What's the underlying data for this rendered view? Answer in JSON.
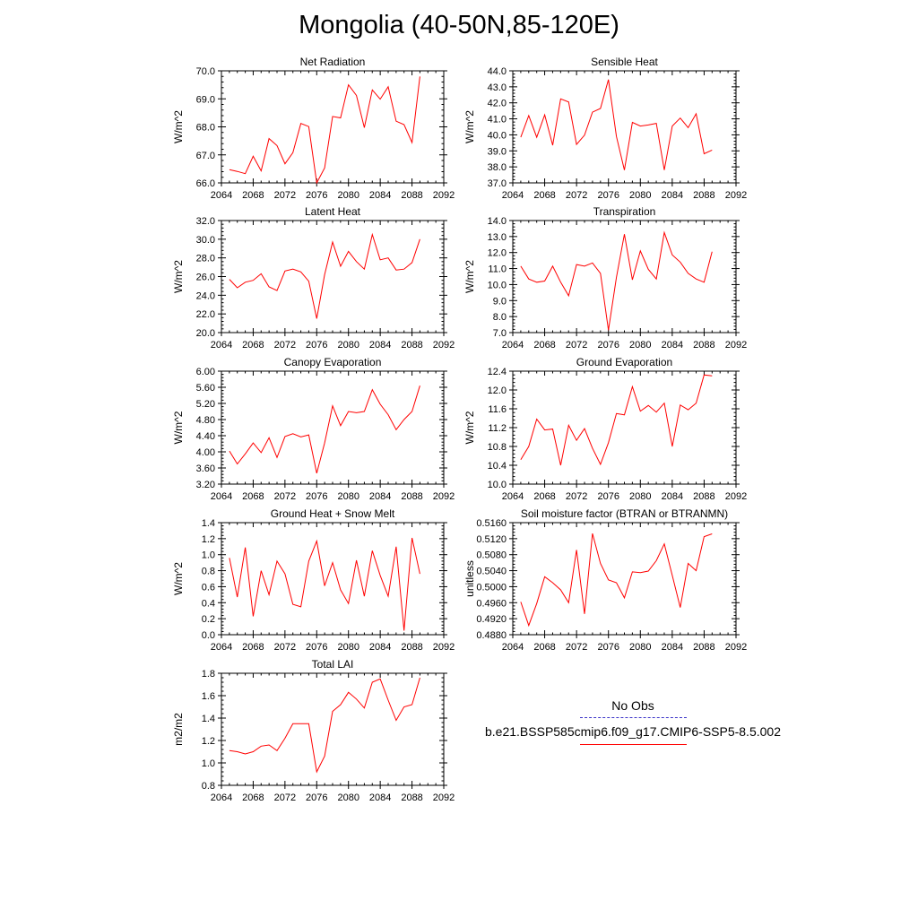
{
  "title": "Mongolia (40-50N,85-120E)",
  "colors": {
    "model_line": "#ff0000",
    "obs_line": "#3a32c8",
    "axis": "#000000"
  },
  "legend": {
    "obs_label": "No Obs",
    "model_label": "b.e21.BSSP585cmip6.f09_g17.CMIP6-SSP5-8.5.002"
  },
  "chart_data": [
    {
      "type": "line",
      "title": "Net Radiation",
      "ylabel": "W/m^2",
      "xlim": [
        2064,
        2092
      ],
      "ylim": [
        66.0,
        70.0
      ],
      "xticks": [
        "2064",
        "2068",
        "2072",
        "2076",
        "2080",
        "2084",
        "2088",
        "2092"
      ],
      "yticks": [
        "66.0",
        "67.0",
        "68.0",
        "69.0",
        "70.0"
      ],
      "series": [
        {
          "x": [
            2065,
            2066,
            2067,
            2068,
            2069,
            2070,
            2071,
            2072,
            2073,
            2074,
            2075,
            2076,
            2077,
            2078,
            2079,
            2080,
            2081,
            2082,
            2083,
            2084,
            2085,
            2086,
            2087,
            2088,
            2089
          ],
          "values": [
            66.47,
            66.41,
            66.33,
            66.95,
            66.43,
            67.58,
            67.33,
            66.68,
            67.08,
            68.12,
            68.01,
            66.0,
            66.53,
            68.37,
            68.32,
            69.5,
            69.12,
            67.97,
            69.32,
            68.99,
            69.43,
            68.2,
            68.08,
            67.44,
            69.8
          ]
        }
      ]
    },
    {
      "type": "line",
      "title": "Sensible Heat",
      "ylabel": "W/m^2",
      "xlim": [
        2064,
        2092
      ],
      "ylim": [
        37.0,
        44.0
      ],
      "xticks": [
        "2064",
        "2068",
        "2072",
        "2076",
        "2080",
        "2084",
        "2088",
        "2092"
      ],
      "yticks": [
        "37.0",
        "38.0",
        "39.0",
        "40.0",
        "41.0",
        "42.0",
        "43.0",
        "44.0"
      ],
      "series": [
        {
          "x": [
            2065,
            2066,
            2067,
            2068,
            2069,
            2070,
            2071,
            2072,
            2073,
            2074,
            2075,
            2076,
            2077,
            2078,
            2079,
            2080,
            2081,
            2082,
            2083,
            2084,
            2085,
            2086,
            2087,
            2088,
            2089
          ],
          "values": [
            39.85,
            41.2,
            39.85,
            41.25,
            39.35,
            42.25,
            42.05,
            39.4,
            39.98,
            41.42,
            41.65,
            43.45,
            39.9,
            37.8,
            40.78,
            40.55,
            40.62,
            40.72,
            37.8,
            40.55,
            41.05,
            40.45,
            41.32,
            38.82,
            39.05
          ]
        }
      ]
    },
    {
      "type": "line",
      "title": "Latent Heat",
      "ylabel": "W/m^2",
      "xlim": [
        2064,
        2092
      ],
      "ylim": [
        20.0,
        32.0
      ],
      "xticks": [
        "2064",
        "2068",
        "2072",
        "2076",
        "2080",
        "2084",
        "2088",
        "2092"
      ],
      "yticks": [
        "20.0",
        "22.0",
        "24.0",
        "26.0",
        "28.0",
        "30.0",
        "32.0"
      ],
      "series": [
        {
          "x": [
            2065,
            2066,
            2067,
            2068,
            2069,
            2070,
            2071,
            2072,
            2073,
            2074,
            2075,
            2076,
            2077,
            2078,
            2079,
            2080,
            2081,
            2082,
            2083,
            2084,
            2085,
            2086,
            2087,
            2088,
            2089
          ],
          "values": [
            25.7,
            24.8,
            25.4,
            25.6,
            26.3,
            24.9,
            24.5,
            26.6,
            26.8,
            26.5,
            25.5,
            21.5,
            26.2,
            29.7,
            27.1,
            28.7,
            27.6,
            26.8,
            30.5,
            27.8,
            28.0,
            26.7,
            26.8,
            27.5,
            30.0
          ]
        }
      ]
    },
    {
      "type": "line",
      "title": "Transpiration",
      "ylabel": "W/m^2",
      "xlim": [
        2064,
        2092
      ],
      "ylim": [
        7.0,
        14.0
      ],
      "xticks": [
        "2064",
        "2068",
        "2072",
        "2076",
        "2080",
        "2084",
        "2088",
        "2092"
      ],
      "yticks": [
        "7.0",
        "8.0",
        "9.0",
        "10.0",
        "11.0",
        "12.0",
        "13.0",
        "14.0"
      ],
      "series": [
        {
          "x": [
            2065,
            2066,
            2067,
            2068,
            2069,
            2070,
            2071,
            2072,
            2073,
            2074,
            2075,
            2076,
            2077,
            2078,
            2079,
            2080,
            2081,
            2082,
            2083,
            2084,
            2085,
            2086,
            2087,
            2088,
            2089
          ],
          "values": [
            11.15,
            10.35,
            10.15,
            10.22,
            11.15,
            10.15,
            9.3,
            11.25,
            11.15,
            11.35,
            10.7,
            7.15,
            10.45,
            13.15,
            10.3,
            12.1,
            10.95,
            10.35,
            13.25,
            11.85,
            11.4,
            10.7,
            10.35,
            10.15,
            12.05
          ]
        }
      ]
    },
    {
      "type": "line",
      "title": "Canopy Evaporation",
      "ylabel": "W/m^2",
      "xlim": [
        2064,
        2092
      ],
      "ylim": [
        3.2,
        6.0
      ],
      "xticks": [
        "2064",
        "2068",
        "2072",
        "2076",
        "2080",
        "2084",
        "2088",
        "2092"
      ],
      "yticks": [
        "3.20",
        "3.60",
        "4.00",
        "4.40",
        "4.80",
        "5.20",
        "5.60",
        "6.00"
      ],
      "series": [
        {
          "x": [
            2065,
            2066,
            2067,
            2068,
            2069,
            2070,
            2071,
            2072,
            2073,
            2074,
            2075,
            2076,
            2077,
            2078,
            2079,
            2080,
            2081,
            2082,
            2083,
            2084,
            2085,
            2086,
            2087,
            2088,
            2089
          ],
          "values": [
            4.02,
            3.7,
            3.95,
            4.22,
            3.98,
            4.35,
            3.86,
            4.38,
            4.45,
            4.37,
            4.42,
            3.47,
            4.22,
            5.14,
            4.65,
            5.0,
            4.97,
            5.0,
            5.54,
            5.18,
            4.92,
            4.55,
            4.8,
            5.0,
            5.64
          ]
        }
      ]
    },
    {
      "type": "line",
      "title": "Ground Evaporation",
      "ylabel": "W/m^2",
      "xlim": [
        2064,
        2092
      ],
      "ylim": [
        10.0,
        12.4
      ],
      "xticks": [
        "2064",
        "2068",
        "2072",
        "2076",
        "2080",
        "2084",
        "2088",
        "2092"
      ],
      "yticks": [
        "10.0",
        "10.4",
        "10.8",
        "11.2",
        "11.6",
        "12.0",
        "12.4"
      ],
      "series": [
        {
          "x": [
            2065,
            2066,
            2067,
            2068,
            2069,
            2070,
            2071,
            2072,
            2073,
            2074,
            2075,
            2076,
            2077,
            2078,
            2079,
            2080,
            2081,
            2082,
            2083,
            2084,
            2085,
            2086,
            2087,
            2088,
            2089
          ],
          "values": [
            10.52,
            10.8,
            11.38,
            11.15,
            11.17,
            10.4,
            11.25,
            10.93,
            11.18,
            10.76,
            10.42,
            10.88,
            11.5,
            11.47,
            12.07,
            11.55,
            11.67,
            11.53,
            11.72,
            10.8,
            11.68,
            11.58,
            11.72,
            12.32,
            12.3
          ]
        }
      ]
    },
    {
      "type": "line",
      "title": "Ground Heat + Snow Melt",
      "ylabel": "W/m^2",
      "xlim": [
        2064,
        2092
      ],
      "ylim": [
        0.0,
        1.4
      ],
      "xticks": [
        "2064",
        "2068",
        "2072",
        "2076",
        "2080",
        "2084",
        "2088",
        "2092"
      ],
      "yticks": [
        "0.0",
        "0.2",
        "0.4",
        "0.6",
        "0.8",
        "1.0",
        "1.2",
        "1.4"
      ],
      "series": [
        {
          "x": [
            2065,
            2066,
            2067,
            2068,
            2069,
            2070,
            2071,
            2072,
            2073,
            2074,
            2075,
            2076,
            2077,
            2078,
            2079,
            2080,
            2081,
            2082,
            2083,
            2084,
            2085,
            2086,
            2087,
            2088,
            2089
          ],
          "values": [
            0.96,
            0.47,
            1.09,
            0.23,
            0.8,
            0.5,
            0.92,
            0.76,
            0.38,
            0.35,
            0.92,
            1.17,
            0.61,
            0.9,
            0.56,
            0.39,
            0.93,
            0.48,
            1.05,
            0.74,
            0.48,
            1.1,
            0.05,
            1.21,
            0.76
          ]
        }
      ]
    },
    {
      "type": "line",
      "title": "Soil moisture factor (BTRAN or BTRANMN)",
      "ylabel": "unitless",
      "xlim": [
        2064,
        2092
      ],
      "ylim": [
        0.488,
        0.516
      ],
      "xticks": [
        "2064",
        "2068",
        "2072",
        "2076",
        "2080",
        "2084",
        "2088",
        "2092"
      ],
      "yticks": [
        "0.4880",
        "0.4920",
        "0.4960",
        "0.5000",
        "0.5040",
        "0.5080",
        "0.5120",
        "0.5160"
      ],
      "series": [
        {
          "x": [
            2065,
            2066,
            2067,
            2068,
            2069,
            2070,
            2071,
            2072,
            2073,
            2074,
            2075,
            2076,
            2077,
            2078,
            2079,
            2080,
            2081,
            2082,
            2083,
            2084,
            2085,
            2086,
            2087,
            2088,
            2089
          ],
          "values": [
            0.4962,
            0.4903,
            0.4958,
            0.5025,
            0.501,
            0.4992,
            0.496,
            0.5092,
            0.4932,
            0.5133,
            0.5058,
            0.5017,
            0.501,
            0.4972,
            0.5037,
            0.5035,
            0.5039,
            0.5065,
            0.5107,
            0.5028,
            0.4948,
            0.5058,
            0.504,
            0.5125,
            0.5132
          ]
        }
      ]
    },
    {
      "type": "line",
      "title": "Total LAI",
      "ylabel": "m2/m2",
      "xlim": [
        2064,
        2092
      ],
      "ylim": [
        0.8,
        1.8
      ],
      "xticks": [
        "2064",
        "2068",
        "2072",
        "2076",
        "2080",
        "2084",
        "2088",
        "2092"
      ],
      "yticks": [
        "0.8",
        "1.0",
        "1.2",
        "1.4",
        "1.6",
        "1.8"
      ],
      "series": [
        {
          "x": [
            2065,
            2066,
            2067,
            2068,
            2069,
            2070,
            2071,
            2072,
            2073,
            2074,
            2075,
            2076,
            2077,
            2078,
            2079,
            2080,
            2081,
            2082,
            2083,
            2084,
            2085,
            2086,
            2087,
            2088,
            2089
          ],
          "values": [
            1.11,
            1.1,
            1.08,
            1.1,
            1.15,
            1.16,
            1.11,
            1.22,
            1.35,
            1.35,
            1.35,
            0.92,
            1.06,
            1.46,
            1.52,
            1.63,
            1.57,
            1.49,
            1.72,
            1.75,
            1.56,
            1.38,
            1.5,
            1.52,
            1.76
          ]
        }
      ]
    }
  ]
}
